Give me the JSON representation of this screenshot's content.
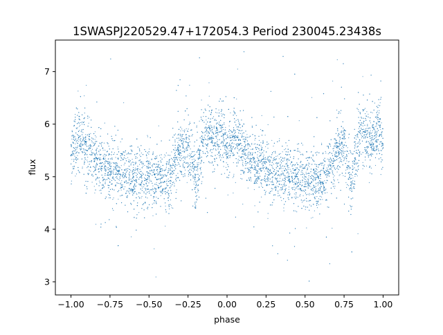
{
  "chart_data": {
    "type": "scatter",
    "title": "1SWASPJ220529.47+172054.3 Period 230045.23438s",
    "xlabel": "phase",
    "ylabel": "flux",
    "xlim": [
      -1.1,
      1.1
    ],
    "ylim": [
      2.75,
      7.6
    ],
    "x_ticks": [
      -1.0,
      -0.75,
      -0.5,
      -0.25,
      0.0,
      0.25,
      0.5,
      0.75,
      1.0
    ],
    "x_tick_labels": [
      "−1.00",
      "−0.75",
      "−0.50",
      "−0.25",
      "0.00",
      "0.25",
      "0.50",
      "0.75",
      "1.00"
    ],
    "y_ticks": [
      3,
      4,
      5,
      6,
      7
    ],
    "y_tick_labels": [
      "3",
      "4",
      "5",
      "6",
      "7"
    ],
    "grid": false,
    "legend": "none",
    "marker_color": "#1f77b4",
    "series": [
      {
        "x": [
          -1.0,
          -0.95,
          -0.9,
          -0.85,
          -0.8,
          -0.75,
          -0.7,
          -0.65,
          -0.6,
          -0.55,
          -0.5,
          -0.45,
          -0.4,
          -0.35,
          -0.3,
          -0.25,
          -0.22,
          -0.2,
          -0.18,
          -0.15,
          -0.12,
          -0.1,
          -0.08,
          -0.05,
          -0.02,
          0.0,
          0.05,
          0.1,
          0.15,
          0.2,
          0.25,
          0.3,
          0.35,
          0.4,
          0.45,
          0.5,
          0.55,
          0.6,
          0.65,
          0.7,
          0.75,
          0.78,
          0.8,
          0.82,
          0.85,
          0.88,
          0.9,
          0.92,
          0.95,
          0.98,
          1.0
        ],
        "y": [
          5.4,
          5.75,
          5.5,
          5.3,
          5.2,
          5.15,
          5.1,
          5.05,
          5.0,
          5.0,
          5.0,
          4.95,
          4.9,
          5.1,
          5.45,
          5.6,
          5.2,
          4.9,
          5.35,
          5.7,
          5.85,
          5.75,
          5.6,
          5.85,
          5.8,
          5.55,
          5.75,
          5.5,
          5.3,
          5.2,
          5.15,
          5.1,
          5.05,
          5.0,
          5.0,
          5.0,
          4.95,
          4.9,
          5.1,
          5.45,
          5.6,
          5.2,
          4.9,
          5.35,
          5.7,
          5.85,
          5.75,
          5.6,
          5.85,
          5.8,
          5.55
        ]
      }
    ]
  }
}
